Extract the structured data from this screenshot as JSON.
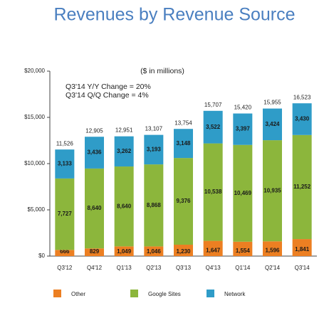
{
  "chart_data": {
    "type": "stacked_bar",
    "title": "Revenues by Revenue Source",
    "annotations": [
      "($ in millions)",
      "Q3'14 Y/Y Change = 20%",
      "Q3'14 Q/Q Change = 4%"
    ],
    "categories": [
      "Q3'12",
      "Q4'12",
      "Q1'13",
      "Q2'13",
      "Q3'13",
      "Q4'13",
      "Q1'14",
      "Q2'14",
      "Q3'14"
    ],
    "series": [
      {
        "name": "Other",
        "color": "#ec7f22",
        "values": [
          666,
          829,
          1049,
          1046,
          1230,
          1647,
          1554,
          1596,
          1841
        ],
        "value_labels": [
          "666",
          "829",
          "1,049",
          "1,046",
          "1,230",
          "1,647",
          "1,554",
          "1,596",
          "1,841"
        ]
      },
      {
        "name": "Google Sites",
        "color": "#8cb63c",
        "values": [
          7727,
          8640,
          8640,
          8868,
          9376,
          10538,
          10469,
          10935,
          11252
        ],
        "value_labels": [
          "7,727",
          "8,640",
          "8,640",
          "8,868",
          "9,376",
          "10,538",
          "10,469",
          "10,935",
          "11,252"
        ]
      },
      {
        "name": "Network",
        "color": "#2f9cc8",
        "values": [
          3133,
          3436,
          3262,
          3193,
          3148,
          3522,
          3397,
          3424,
          3430
        ],
        "value_labels": [
          "3,133",
          "3,436",
          "3,262",
          "3,193",
          "3,148",
          "3,522",
          "3,397",
          "3,424",
          "3,430"
        ]
      }
    ],
    "totals": {
      "values": [
        11526,
        12905,
        12951,
        13107,
        13754,
        15707,
        15420,
        15955,
        16523
      ],
      "value_labels": [
        "11,526",
        "12,905",
        "12,951",
        "13,107",
        "13,754",
        "15,707",
        "15,420",
        "15,955",
        "16,523"
      ]
    },
    "ylim": [
      0,
      20000
    ],
    "yticks": [
      {
        "value": 0,
        "label": "$0"
      },
      {
        "value": 5000,
        "label": "$5,000"
      },
      {
        "value": 10000,
        "label": "$10,000"
      },
      {
        "value": 15000,
        "label": "$15,000"
      },
      {
        "value": 20000,
        "label": "$20,000"
      }
    ],
    "legend": "bottom"
  }
}
